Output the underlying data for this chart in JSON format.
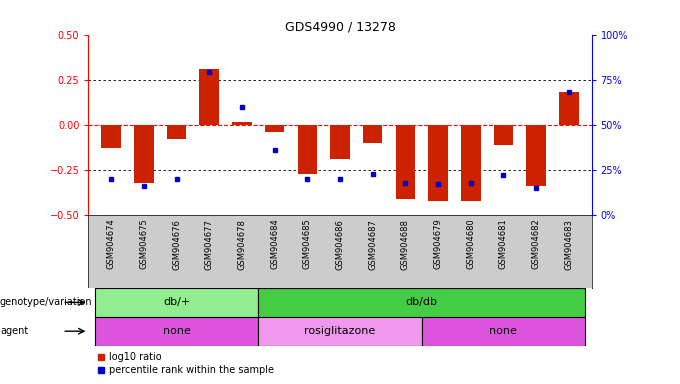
{
  "title": "GDS4990 / 13278",
  "samples": [
    "GSM904674",
    "GSM904675",
    "GSM904676",
    "GSM904677",
    "GSM904678",
    "GSM904684",
    "GSM904685",
    "GSM904686",
    "GSM904687",
    "GSM904688",
    "GSM904679",
    "GSM904680",
    "GSM904681",
    "GSM904682",
    "GSM904683"
  ],
  "log10_ratio": [
    -0.13,
    -0.32,
    -0.08,
    0.31,
    0.015,
    -0.04,
    -0.27,
    -0.19,
    -0.1,
    -0.41,
    -0.42,
    -0.42,
    -0.11,
    -0.34,
    0.18
  ],
  "percentile": [
    20,
    16,
    20,
    79,
    60,
    36,
    20,
    20,
    23,
    18,
    17,
    18,
    22,
    15,
    68
  ],
  "genotype_groups": [
    {
      "label": "db/+",
      "start": 0,
      "end": 5,
      "color": "#90ee90"
    },
    {
      "label": "db/db",
      "start": 5,
      "end": 15,
      "color": "#44cc44"
    }
  ],
  "agent_groups": [
    {
      "label": "none",
      "start": 0,
      "end": 5,
      "color": "#dd55dd"
    },
    {
      "label": "rosiglitazone",
      "start": 5,
      "end": 10,
      "color": "#ee99ee"
    },
    {
      "label": "none",
      "start": 10,
      "end": 15,
      "color": "#dd55dd"
    }
  ],
  "bar_color": "#cc2200",
  "dot_color": "#0000cc",
  "ylim": [
    -0.5,
    0.5
  ],
  "y2lim": [
    0,
    100
  ],
  "yticks": [
    -0.5,
    -0.25,
    0.0,
    0.25,
    0.5
  ],
  "y2ticks": [
    0,
    25,
    50,
    75,
    100
  ],
  "background_color": "#ffffff",
  "tick_bg": "#cccccc"
}
